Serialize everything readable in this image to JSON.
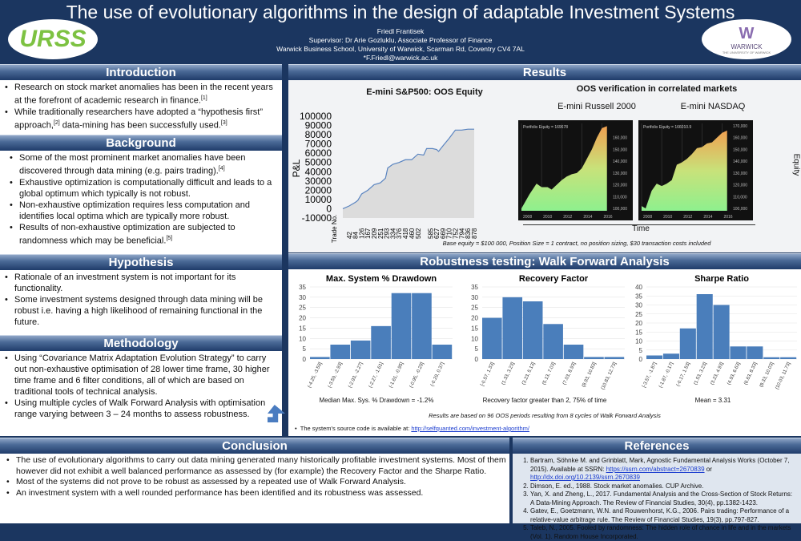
{
  "header": {
    "title": "The use of evolutionary algorithms in the design of adaptable Investment Systems",
    "author": "Friedl Frantisek",
    "supervisor": "Supervisor: Dr Arie Gozluklu, Associate Professor of Finance",
    "affiliation": "Warwick Business School, University of Warwick, Scarman Rd, Coventry CV4 7AL",
    "email": "*F.Friedl@warwick.ac.uk",
    "logo_left": "URSS",
    "logo_right": "WARWICK",
    "logo_right_sub": "THE UNIVERSITY OF WARWICK"
  },
  "introduction": {
    "title": "Introduction",
    "items": [
      {
        "text": "Research on stock market anomalies has been in the recent years at the forefront of academic research in finance.",
        "ref": "[1]"
      },
      {
        "text": "While traditionally researchers have adopted a “hypothesis first” approach,",
        "ref": "[2]",
        "text2": " data-mining has been successfully used.",
        "ref2": "[3]"
      }
    ]
  },
  "background": {
    "title": "Background",
    "items": [
      {
        "text": "Some of the most prominent market anomalies have been discovered through data mining (e.g. pairs trading).",
        "ref": "[4]"
      },
      {
        "text": "Exhaustive optimization is computationally difficult and leads to a global optimum which typically is not robust.",
        "ref": ""
      },
      {
        "text": "Non-exhaustive optimization requires less computation and identifies local optima which are typically more robust.",
        "ref": ""
      },
      {
        "text": "Results of non-exhaustive optimization are subjected to randomness which may be beneficial.",
        "ref": "[5]"
      }
    ]
  },
  "hypothesis": {
    "title": "Hypothesis",
    "items": [
      "Rationale of an investment system is not important for its functionality.",
      "Some investment systems designed through data mining will be robust i.e. having a high likelihood of remaining functional in the future."
    ]
  },
  "methodology": {
    "title": "Methodology",
    "items": [
      "Using “Covariance Matrix Adaptation Evolution Strategy” to carry out non-exhaustive optimisation of  28 lower time frame, 30 higher time frame and 6 filter conditions, all of which are based on traditional tools of technical analysis.",
      "Using multiple cycles of Walk Forward Analysis with optimisation range varying between 3 – 24 months to assess robustness."
    ]
  },
  "results": {
    "title": "Results",
    "oos_title": "OOS verification in correlated markets",
    "note": "Base equity = $100 000, Position Size = 1 contract, no position sizing,  $30 transaction costs included",
    "time_label": "Time",
    "equity_label": "Equity"
  },
  "robustness": {
    "title": "Robustness testing: Walk Forward Analysis",
    "note": "Results are based on 96 OOS periods resulting from 8 cycles of Walk Forward Analysis",
    "source_prefix": "The system's source code is available at: ",
    "source_link": "http://selfquanted.com/investment-algorithm/"
  },
  "conclusion": {
    "title": "Conclusion",
    "items": [
      "The use of evolutionary algorithms to carry out data mining generated many historically profitable investment systems. Most of them however did not exhibit a well balanced performance as assessed by (for example) the Recovery Factor and the Sharpe Ratio.",
      "Most of the systems did not prove to be robust as assessed by a repeated use of Walk Forward Analysis.",
      "An investment system with a well rounded performance has been identified and its robustness was assessed."
    ]
  },
  "references": {
    "title": "References",
    "items": [
      {
        "text": "Bartram, Söhnke M. and Grinblatt, Mark, Agnostic Fundamental Analysis Works (October 7, 2015). Available at SSRN: ",
        "link1": "https://ssrn.com/abstract=2670839",
        "mid": " or ",
        "link2": "http://dx.doi.org/10.2139/ssrn.2670839"
      },
      {
        "text": "Dimson, E. ed., 1988. Stock market anomalies. CUP Archive."
      },
      {
        "text": "Yan, X. and Zheng, L., 2017. Fundamental Analysis and the Cross-Section of Stock Returns: A Data-Mining Approach. The Review of Financial Studies, 30(4), pp.1382-1423."
      },
      {
        "text": "Gatev, E., Goetzmann, W.N. and Rouwenhorst, K.G., 2006. Pairs trading: Performance of a relative-value arbitrage rule. The Review of Financial Studies, 19(3), pp.797-827."
      },
      {
        "text": "Taleb, N., 2005. Fooled by randomness: The hidden role of chance in life and in the markets (Vol. 1). Random House Incorporated."
      }
    ]
  },
  "chart_data": [
    {
      "type": "area",
      "title": "E-mini S&P500: OOS Equity",
      "ylabel": "P&L",
      "xlabel": "Trade No.",
      "ylim": [
        -10000,
        100000
      ],
      "yticks": [
        100000,
        90000,
        80000,
        70000,
        60000,
        50000,
        40000,
        30000,
        20000,
        10000,
        0,
        -10000
      ],
      "xticks": [
        "42",
        "84",
        "126",
        "167",
        "209",
        "251",
        "293",
        "334",
        "376",
        "418",
        "460",
        "502",
        "585",
        "627",
        "669",
        "710",
        "752",
        "794",
        "836",
        "878"
      ],
      "x": [
        0,
        42,
        84,
        100,
        126,
        167,
        209,
        251,
        285,
        300,
        334,
        376,
        418,
        460,
        502,
        540,
        560,
        600,
        627,
        640,
        669,
        710,
        752,
        794,
        836,
        878
      ],
      "y": [
        0,
        3000,
        7000,
        9000,
        16000,
        20000,
        26000,
        28000,
        33000,
        44000,
        48000,
        50000,
        53000,
        53000,
        59000,
        58000,
        65000,
        65000,
        64000,
        62000,
        68000,
        76000,
        85000,
        85000,
        86000,
        86000
      ]
    },
    {
      "type": "area",
      "title": "E-mini Russell 2000",
      "label": "Portfolio Equity = 169678",
      "xticks": [
        "2008",
        "2010",
        "2012",
        "2014",
        "2016"
      ],
      "yticks": [
        "160,000",
        "150,000",
        "140,000",
        "130,000",
        "120,000",
        "110,000",
        "100,000"
      ],
      "ylim": [
        98000,
        172000
      ],
      "x": [
        2008,
        2008.8,
        2009.5,
        2010,
        2010.6,
        2011,
        2011.5,
        2012,
        2012.5,
        2013,
        2013.5,
        2014,
        2014.5,
        2015,
        2015.5,
        2016,
        2016.5
      ],
      "y": [
        100000,
        112000,
        121000,
        118000,
        118000,
        116000,
        120000,
        124000,
        127000,
        129000,
        130000,
        134000,
        142000,
        150000,
        160000,
        168000,
        169678
      ]
    },
    {
      "type": "area",
      "title": "E-mini NASDAQ",
      "label": "Portfolio Equity = 166010.9",
      "xticks": [
        "2008",
        "2010",
        "2012",
        "2014",
        "2016"
      ],
      "yticks": [
        "170,000",
        "160,000",
        "150,000",
        "140,000",
        "130,000",
        "120,000",
        "110,000",
        "100,000"
      ],
      "ylim": [
        98000,
        172000
      ],
      "x": [
        2008,
        2008.4,
        2009,
        2009.5,
        2010,
        2010.5,
        2011,
        2011.5,
        2012,
        2012.5,
        2013,
        2013.5,
        2014,
        2014.5,
        2015,
        2015.5,
        2016,
        2016.5
      ],
      "y": [
        102000,
        100000,
        115000,
        121000,
        119000,
        121000,
        124000,
        137000,
        139000,
        142000,
        146000,
        151000,
        152000,
        155000,
        156000,
        160000,
        164000,
        166011
      ]
    },
    {
      "type": "bar",
      "title": "Max. System % Drawdown",
      "caption": "Median Max. Sys. % Drawdown = -1.2%",
      "ylim": [
        0,
        35
      ],
      "yticks": [
        0,
        5,
        10,
        15,
        20,
        25,
        30,
        35
      ],
      "categories": [
        "(-4.25, -3.59]",
        "(-3.59, -2.93]",
        "(-2.93, -2.27]",
        "(-2.27, -1.61]",
        "(-1.61, -0.95]",
        "(-0.95, -0.29]",
        "(-0.29, 0.37]"
      ],
      "values": [
        1,
        7,
        9,
        16,
        32,
        32,
        7
      ]
    },
    {
      "type": "bar",
      "title": "Recovery Factor",
      "caption": "Recovery factor greater than 2, 75% of time",
      "ylim": [
        0,
        35
      ],
      "yticks": [
        0,
        5,
        10,
        15,
        20,
        25,
        30,
        35
      ],
      "categories": [
        "[-0.57, 1.33]",
        "(1.33, 3.23]",
        "(3.23, 5.13]",
        "(5.13, 7.03]",
        "(7.03, 8.93]",
        "(8.93, 10.83]",
        "(10.83, 12.73]"
      ],
      "values": [
        20,
        30,
        28,
        17,
        7,
        1,
        1
      ]
    },
    {
      "type": "bar",
      "title": "Sharpe Ratio",
      "caption": "Mean = 3.31",
      "ylim": [
        0,
        40
      ],
      "yticks": [
        0,
        5,
        10,
        15,
        20,
        25,
        30,
        35,
        40
      ],
      "categories": [
        "[-3.57, -1.87]",
        "(-1.87, -0.17]",
        "(-0.17, 1.53]",
        "(1.53, 3.23]",
        "(3.23, 4.93]",
        "(4.93, 6.63]",
        "(6.63, 8.33]",
        "(8.33, 10.03]",
        "(10.03, 11.73]"
      ],
      "values": [
        2,
        3,
        17,
        36,
        30,
        7,
        7,
        1,
        1
      ]
    }
  ]
}
